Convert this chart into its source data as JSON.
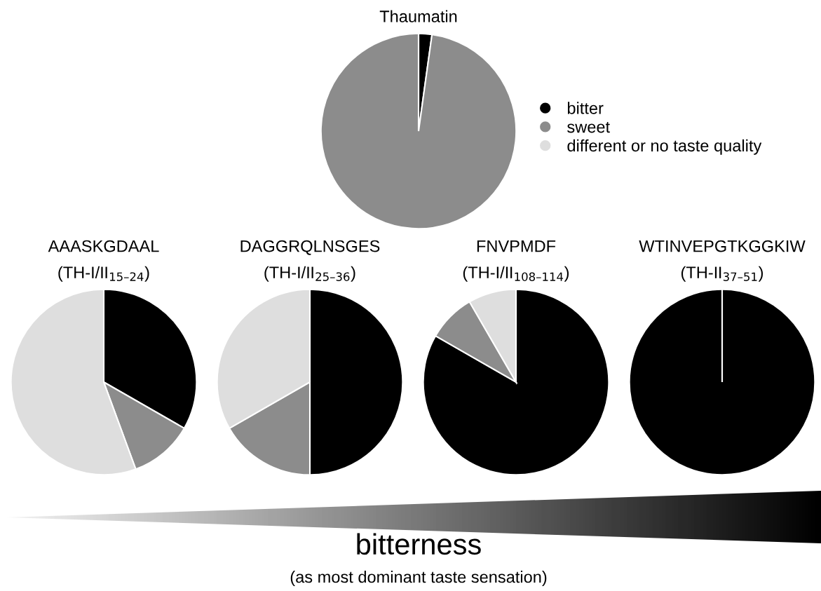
{
  "chart_data": [
    {
      "type": "pie",
      "title": "Thaumatin",
      "categories": [
        "bitter",
        "sweet",
        "different or no taste quality"
      ],
      "values": [
        2.2,
        97.8,
        0
      ],
      "colors": [
        "#000000",
        "#8c8c8c",
        "#dedede"
      ],
      "legend": "right"
    },
    {
      "type": "pie",
      "title": "AAASKGDAAL",
      "subtitle": "(TH-I/II$_{15–24}$)",
      "values": [
        33.3,
        11.1,
        55.6
      ],
      "colors": [
        "#000000",
        "#8c8c8c",
        "#dedede"
      ]
    },
    {
      "type": "pie",
      "title": "DAGGRQLNSGES",
      "subtitle": "(TH-I/II$_{25–36}$)",
      "values": [
        50,
        16.7,
        33.3
      ],
      "colors": [
        "#000000",
        "#8c8c8c",
        "#dedede"
      ]
    },
    {
      "type": "pie",
      "title": "FNVPMDF",
      "subtitle": "(TH-I/II$_{108–114}$)",
      "values": [
        83.3,
        8.35,
        8.35
      ],
      "colors": [
        "#000000",
        "#8c8c8c",
        "#dedede"
      ]
    },
    {
      "type": "pie",
      "title": "WTINVEPGTKGGKIW",
      "subtitle": "(TH-II$_{37–51}$)",
      "values": [
        100,
        0,
        0
      ],
      "colors": [
        "#000000",
        "#8c8c8c",
        "#dedede"
      ],
      "annotations": [
        "bitterness",
        "(as most dominant taste sensation)"
      ]
    }
  ]
}
